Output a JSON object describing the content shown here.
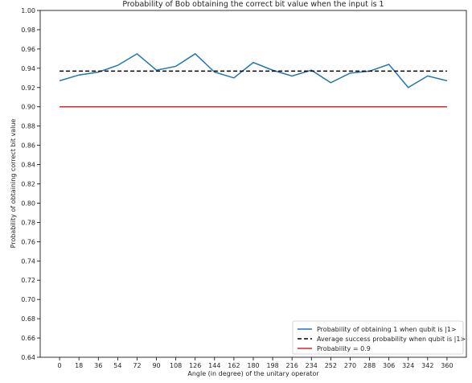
{
  "chart_data": {
    "type": "line",
    "title": "Probability of Bob obtaining the correct bit value when the input is 1",
    "xlabel": "Angle (in degree) of the unitary operator",
    "ylabel": "Probability of obtaining correct bit value",
    "xlim": [
      -18,
      378
    ],
    "ylim": [
      0.64,
      1.0
    ],
    "xticks": [
      0,
      18,
      36,
      54,
      72,
      90,
      108,
      126,
      144,
      162,
      180,
      198,
      216,
      234,
      252,
      270,
      288,
      306,
      324,
      342,
      360
    ],
    "yticks": [
      "0.64",
      "0.66",
      "0.68",
      "0.70",
      "0.72",
      "0.74",
      "0.76",
      "0.78",
      "0.80",
      "0.82",
      "0.84",
      "0.86",
      "0.88",
      "0.90",
      "0.92",
      "0.94",
      "0.96",
      "0.98",
      "1.00"
    ],
    "grid": false,
    "legend_position": "lower-right",
    "x": [
      0,
      18,
      36,
      54,
      72,
      90,
      108,
      126,
      144,
      162,
      180,
      198,
      216,
      234,
      252,
      270,
      288,
      306,
      324,
      342,
      360
    ],
    "series": [
      {
        "name": "Probability of obtaining 1 when qubit is |1>",
        "color": "#1f77b4",
        "style": "solid",
        "values": [
          0.927,
          0.933,
          0.936,
          0.943,
          0.955,
          0.938,
          0.942,
          0.955,
          0.936,
          0.93,
          0.946,
          0.938,
          0.932,
          0.938,
          0.925,
          0.935,
          0.937,
          0.944,
          0.92,
          0.932,
          0.927
        ]
      },
      {
        "name": "Average success probability when qubit is |1>",
        "color": "#000000",
        "style": "dashed",
        "values": [
          0.937,
          0.937,
          0.937,
          0.937,
          0.937,
          0.937,
          0.937,
          0.937,
          0.937,
          0.937,
          0.937,
          0.937,
          0.937,
          0.937,
          0.937,
          0.937,
          0.937,
          0.937,
          0.937,
          0.937,
          0.937
        ]
      },
      {
        "name": "Probability = 0.9",
        "color": "#d62728",
        "style": "solid",
        "values": [
          0.9,
          0.9,
          0.9,
          0.9,
          0.9,
          0.9,
          0.9,
          0.9,
          0.9,
          0.9,
          0.9,
          0.9,
          0.9,
          0.9,
          0.9,
          0.9,
          0.9,
          0.9,
          0.9,
          0.9,
          0.9
        ]
      }
    ]
  }
}
